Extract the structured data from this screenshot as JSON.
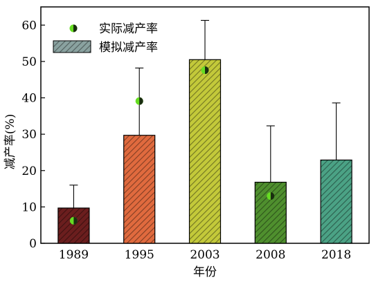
{
  "chart_data": {
    "type": "bar",
    "categories": [
      "1989",
      "1995",
      "2003",
      "2008",
      "2018"
    ],
    "xlabel": "年份",
    "ylabel": "减产率(%)",
    "ylim": [
      0,
      65
    ],
    "yticks": [
      0,
      10,
      20,
      30,
      40,
      50,
      60
    ],
    "grid": false,
    "legend_position": "top-left",
    "series": [
      {
        "name": "模拟减产率",
        "kind": "bar",
        "values": [
          9.7,
          29.7,
          50.5,
          16.8,
          22.9
        ],
        "error_upper": [
          16.0,
          48.2,
          61.3,
          32.3,
          38.6
        ],
        "colors": [
          "#6b1e1e",
          "#e06a3e",
          "#c3c93a",
          "#4f8f2e",
          "#4ba285"
        ],
        "legend_color": "#8aa2a0"
      },
      {
        "name": "实际减产率",
        "kind": "point",
        "values": [
          6.2,
          39.1,
          47.6,
          13.0,
          null
        ],
        "marker_color": "#66dd22",
        "marker_accent": "#1a2e10"
      }
    ]
  }
}
